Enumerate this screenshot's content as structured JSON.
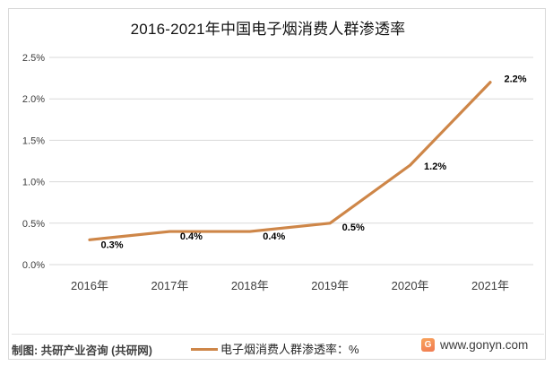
{
  "title": "2016-2021年中国电子烟消费人群渗透率",
  "chart_data": {
    "type": "line",
    "categories": [
      "2016年",
      "2017年",
      "2018年",
      "2019年",
      "2020年",
      "2021年"
    ],
    "series": [
      {
        "name": "电子烟消费人群渗透率",
        "values": [
          0.3,
          0.4,
          0.4,
          0.5,
          1.2,
          2.2
        ]
      }
    ],
    "data_labels": [
      "0.3%",
      "0.4%",
      "0.4%",
      "0.5%",
      "1.2%",
      "2.2%"
    ],
    "y_ticks": [
      "0.0%",
      "0.5%",
      "1.0%",
      "1.5%",
      "2.0%",
      "2.5%"
    ],
    "ylim": [
      0,
      2.5
    ],
    "xlabel": "",
    "ylabel": "",
    "grid": "horizontal",
    "legend_position": "bottom",
    "colors": {
      "line": "#ce8648",
      "gridline": "#d9d9d9",
      "axis_text": "#3d3d3d",
      "data_label": "#000000"
    }
  },
  "legend": {
    "label": "电子烟消费人群渗透率：%"
  },
  "footer": {
    "credit": "制图: 共研产业咨询 (共研网)",
    "website": "www.gonyn.com",
    "logo_letter": "G"
  }
}
